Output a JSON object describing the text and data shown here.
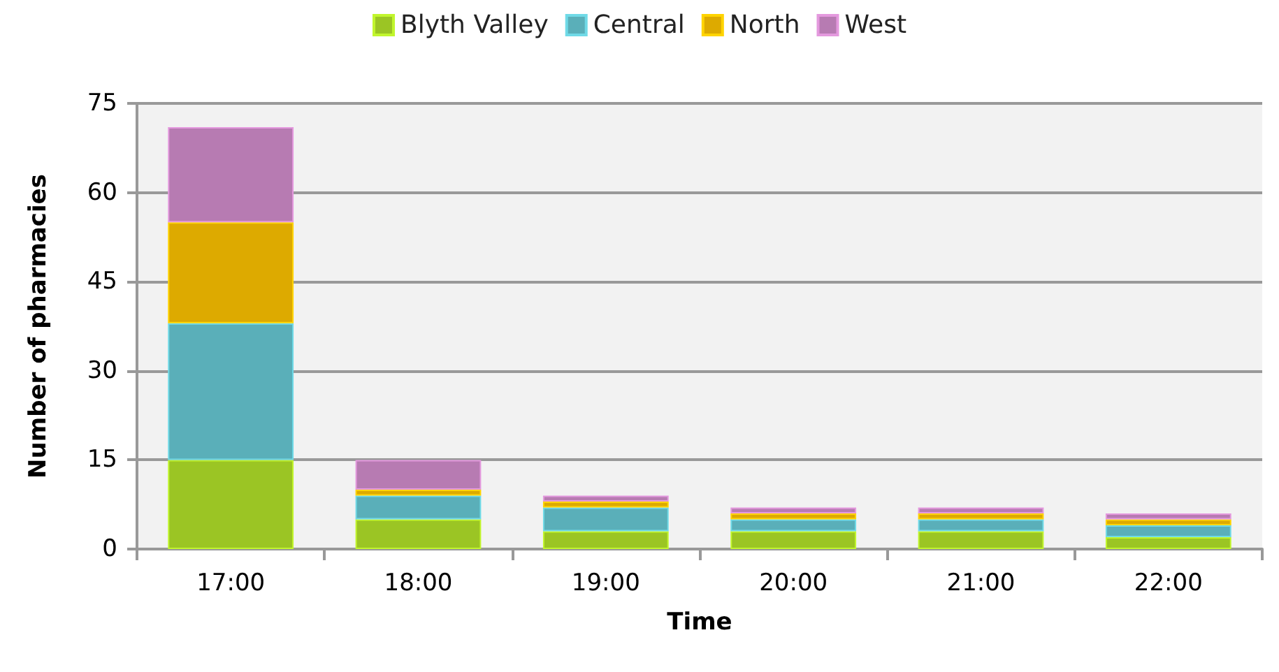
{
  "chart_data": {
    "type": "bar",
    "stacked": true,
    "xlabel": "Time",
    "ylabel": "Number of pharmacies",
    "categories": [
      "17:00",
      "18:00",
      "19:00",
      "20:00",
      "21:00",
      "22:00"
    ],
    "series": [
      {
        "name": "Blyth Valley",
        "color": "#9bc524",
        "values": [
          15,
          5,
          3,
          3,
          3,
          2
        ]
      },
      {
        "name": "Central",
        "color": "#5aafb9",
        "values": [
          23,
          4,
          4,
          2,
          2,
          2
        ]
      },
      {
        "name": "North",
        "color": "#ddaa00",
        "values": [
          17,
          1,
          1,
          1,
          1,
          1
        ]
      },
      {
        "name": "West",
        "color": "#b77bb2",
        "values": [
          16,
          5,
          1,
          1,
          1,
          1
        ]
      }
    ],
    "ylim": [
      0,
      75
    ],
    "yticks": [
      0,
      15,
      30,
      45,
      60,
      75
    ],
    "grid": "y",
    "legend": "top"
  }
}
